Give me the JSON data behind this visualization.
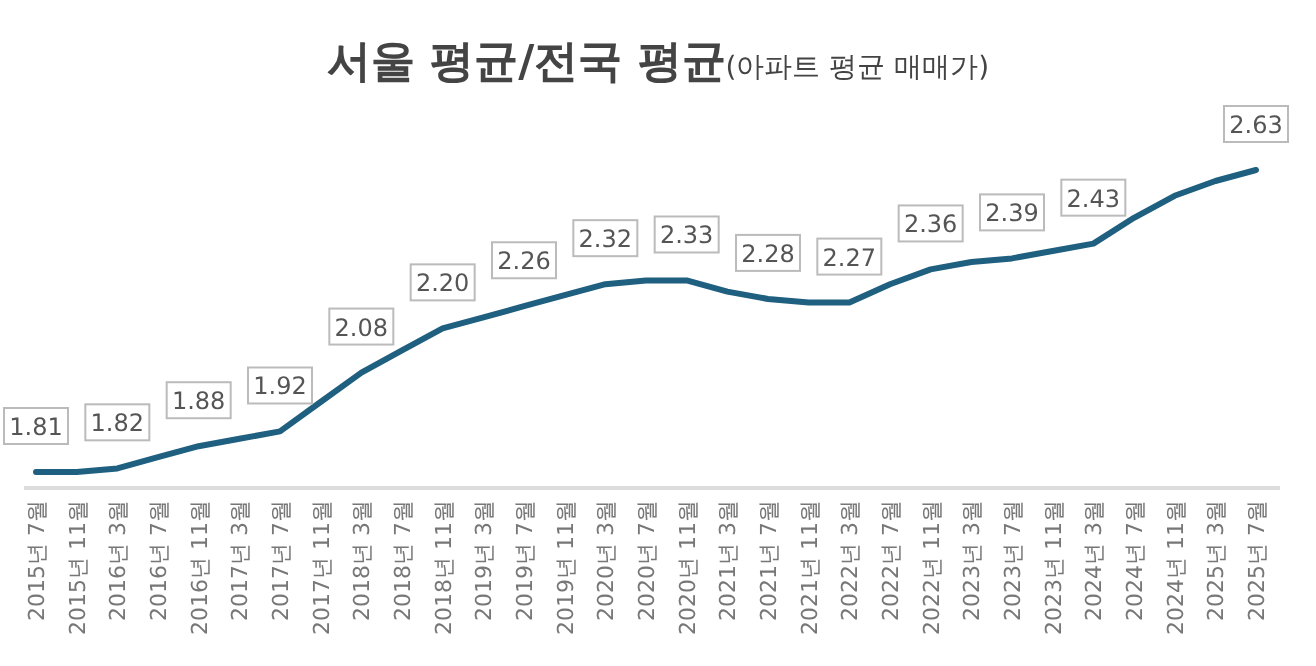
{
  "chart_data": {
    "type": "line",
    "title": "서울 평균/전국 평균",
    "subtitle": "(아파트 평균 매매가)",
    "categories": [
      "2015년 7월",
      "2015년 11월",
      "2016년 3월",
      "2016년 7월",
      "2016년 11월",
      "2017년 3월",
      "2017년 7월",
      "2017년 11월",
      "2018년 3월",
      "2018년 7월",
      "2018년 11월",
      "2019년 3월",
      "2019년 7월",
      "2019년 11월",
      "2020년 3월",
      "2020년 7월",
      "2020년 11월",
      "2021년 3월",
      "2021년 7월",
      "2021년 11월",
      "2022년 3월",
      "2022년 7월",
      "2022년 11월",
      "2023년 3월",
      "2023년 7월",
      "2023년 11월",
      "2024년 3월",
      "2024년 7월",
      "2024년 11월",
      "2025년 3월",
      "2025년 7월"
    ],
    "values": [
      1.81,
      1.81,
      1.82,
      1.85,
      1.88,
      1.9,
      1.92,
      2.0,
      2.08,
      2.14,
      2.2,
      2.23,
      2.26,
      2.29,
      2.32,
      2.33,
      2.33,
      2.3,
      2.28,
      2.27,
      2.27,
      2.32,
      2.36,
      2.38,
      2.39,
      2.41,
      2.43,
      2.5,
      2.56,
      2.6,
      2.63
    ],
    "value_labels": [
      "1.81",
      null,
      "1.82",
      null,
      "1.88",
      null,
      "1.92",
      null,
      "2.08",
      null,
      "2.20",
      null,
      "2.26",
      null,
      "2.32",
      null,
      "2.33",
      null,
      "2.28",
      null,
      "2.27",
      null,
      "2.36",
      null,
      "2.39",
      null,
      "2.43",
      null,
      null,
      null,
      "2.63"
    ],
    "color": "#1f5f7f",
    "line_style": "solid"
  }
}
